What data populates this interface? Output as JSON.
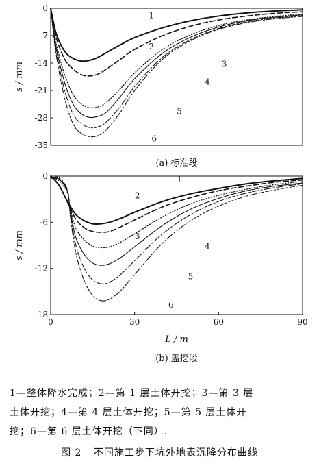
{
  "chart_data": [
    {
      "type": "line",
      "caption": "(a) 标准段",
      "ylabel": "s / mm",
      "xlim": [
        0,
        90
      ],
      "ylim": [
        -35,
        0
      ],
      "yticks": [
        0,
        -7,
        -14,
        -21,
        -28,
        -35
      ],
      "ytick_labels": [
        "0",
        "-7",
        "-14",
        "-21",
        "-28",
        "-35"
      ],
      "show_x_ticks": false,
      "grid": false,
      "series": [
        {
          "name": "1",
          "style": "solid-bold",
          "x": [
            0,
            2,
            5,
            8,
            11,
            14,
            17,
            20,
            25,
            30,
            40,
            50,
            60,
            70,
            80,
            90
          ],
          "y": [
            0,
            -6.5,
            -11,
            -12.8,
            -13.5,
            -13.3,
            -12.5,
            -11.3,
            -9.3,
            -7.5,
            -5.0,
            -3.2,
            -2.0,
            -1.2,
            -0.7,
            -0.4
          ]
        },
        {
          "name": "2",
          "style": "dashed",
          "x": [
            0,
            2,
            5,
            8,
            11,
            14,
            17,
            20,
            25,
            30,
            40,
            50,
            60,
            70,
            80,
            90
          ],
          "y": [
            0,
            -7.5,
            -13,
            -15.5,
            -17.0,
            -17.3,
            -16.8,
            -15.5,
            -13.0,
            -10.5,
            -7.0,
            -4.6,
            -3.0,
            -2.0,
            -1.3,
            -0.9
          ]
        },
        {
          "name": "3",
          "style": "dotted",
          "x": [
            0,
            2,
            5,
            8,
            11,
            14,
            17,
            20,
            25,
            30,
            40,
            50,
            60,
            70,
            80,
            90
          ],
          "y": [
            0,
            -9,
            -17,
            -22,
            -24.5,
            -25.4,
            -25.2,
            -24.0,
            -20.5,
            -16.5,
            -10.5,
            -6.8,
            -4.4,
            -3.0,
            -2.1,
            -1.5
          ]
        },
        {
          "name": "4",
          "style": "solid",
          "x": [
            0,
            2,
            5,
            8,
            11,
            14,
            17,
            20,
            25,
            30,
            40,
            50,
            60,
            70,
            80,
            90
          ],
          "y": [
            0,
            -10,
            -19,
            -24.5,
            -27.0,
            -27.9,
            -27.6,
            -26.5,
            -22.5,
            -18.0,
            -11.5,
            -7.4,
            -4.8,
            -3.2,
            -2.3,
            -1.7
          ]
        },
        {
          "name": "5",
          "style": "dash-dot",
          "x": [
            0,
            2,
            5,
            8,
            11,
            14,
            17,
            20,
            25,
            30,
            40,
            50,
            60,
            70,
            80,
            90
          ],
          "y": [
            0,
            -11,
            -21,
            -27,
            -29.5,
            -30.5,
            -30.3,
            -29.0,
            -25.0,
            -20.0,
            -12.5,
            -8.0,
            -5.2,
            -3.5,
            -2.5,
            -1.9
          ]
        },
        {
          "name": "6",
          "style": "dash-dot-dot",
          "x": [
            0,
            2,
            5,
            8,
            11,
            14,
            17,
            20,
            25,
            30,
            40,
            50,
            60,
            70,
            80,
            90
          ],
          "y": [
            0,
            -12,
            -23,
            -29.5,
            -32.0,
            -32.8,
            -32.5,
            -31.0,
            -26.5,
            -21.0,
            -13.0,
            -8.3,
            -5.4,
            -3.7,
            -2.7,
            -2.1
          ]
        }
      ],
      "labels": [
        {
          "text": "1",
          "x": 36,
          "y": -2.5
        },
        {
          "text": "2",
          "x": 36,
          "y": -10.5
        },
        {
          "text": "3",
          "x": 62,
          "y": -15
        },
        {
          "text": "4",
          "x": 56,
          "y": -19.5
        },
        {
          "text": "5",
          "x": 46,
          "y": -27
        },
        {
          "text": "6",
          "x": 37,
          "y": -34
        }
      ]
    },
    {
      "type": "line",
      "caption": "(b) 盖挖段",
      "xlabel": "L / m",
      "ylabel": "s / mm",
      "xlim": [
        0,
        90
      ],
      "ylim": [
        -18,
        0
      ],
      "xticks": [
        0,
        30,
        60,
        90
      ],
      "xtick_labels": [
        "0",
        "30",
        "60",
        "90"
      ],
      "yticks": [
        0,
        -6,
        -12,
        -18
      ],
      "ytick_labels": [
        "0",
        "-6",
        "-12",
        "-18"
      ],
      "grid": false,
      "series": [
        {
          "name": "1",
          "style": "solid-bold",
          "x": [
            0,
            3,
            6,
            9,
            12,
            15,
            18,
            21,
            25,
            30,
            40,
            50,
            60,
            70,
            80,
            90
          ],
          "y": [
            0,
            -1.2,
            -3.3,
            -5.0,
            -5.8,
            -6.2,
            -6.2,
            -6.0,
            -5.5,
            -4.7,
            -3.3,
            -2.3,
            -1.6,
            -1.0,
            -0.6,
            -0.3
          ]
        },
        {
          "name": "2",
          "style": "dashed",
          "x": [
            0,
            3,
            6,
            9,
            12,
            15,
            18,
            21,
            25,
            30,
            40,
            50,
            60,
            70,
            80,
            90
          ],
          "y": [
            0,
            -1.2,
            -3.4,
            -5.6,
            -6.7,
            -7.2,
            -7.3,
            -7.2,
            -6.6,
            -5.7,
            -4.0,
            -2.8,
            -1.9,
            -1.3,
            -0.8,
            -0.5
          ]
        },
        {
          "name": "3",
          "style": "dotted",
          "x": [
            0,
            3,
            6,
            7,
            9,
            12,
            15,
            18,
            21,
            25,
            30,
            40,
            50,
            60,
            70,
            80,
            90
          ],
          "y": [
            -0.2,
            -0.6,
            -2.2,
            -4.2,
            -6.8,
            -8.3,
            -9.1,
            -9.3,
            -9.2,
            -8.6,
            -7.5,
            -5.3,
            -3.6,
            -2.5,
            -1.7,
            -1.1,
            -0.7
          ]
        },
        {
          "name": "4",
          "style": "solid",
          "x": [
            0,
            3,
            6,
            7,
            9,
            12,
            15,
            18,
            21,
            25,
            30,
            40,
            50,
            60,
            70,
            80,
            90
          ],
          "y": [
            -0.3,
            -0.4,
            -2.0,
            -4.5,
            -8.0,
            -10.2,
            -11.3,
            -11.6,
            -11.4,
            -10.6,
            -9.2,
            -6.4,
            -4.3,
            -2.9,
            -1.9,
            -1.3,
            -0.9
          ]
        },
        {
          "name": "5",
          "style": "dash-dot",
          "x": [
            0,
            3,
            6,
            7,
            9,
            12,
            15,
            18,
            21,
            25,
            30,
            40,
            50,
            60,
            70,
            80,
            90
          ],
          "y": [
            -0.3,
            -0.3,
            -1.9,
            -4.8,
            -9.0,
            -12.0,
            -13.5,
            -14.0,
            -13.8,
            -12.8,
            -11.0,
            -7.5,
            -5.0,
            -3.3,
            -2.2,
            -1.5,
            -1.0
          ]
        },
        {
          "name": "6",
          "style": "dash-dot-dot",
          "x": [
            0,
            3,
            6,
            7,
            9,
            12,
            15,
            18,
            21,
            25,
            30,
            40,
            50,
            60,
            70,
            80,
            90
          ],
          "y": [
            -0.3,
            -0.2,
            -1.8,
            -5.1,
            -10.0,
            -13.6,
            -15.5,
            -16.2,
            -16.0,
            -14.9,
            -12.8,
            -8.7,
            -5.8,
            -3.9,
            -2.6,
            -1.8,
            -1.2
          ]
        }
      ],
      "labels": [
        {
          "text": "1",
          "x": 46,
          "y": -0.8
        },
        {
          "text": "2",
          "x": 31,
          "y": -2.9
        },
        {
          "text": "3",
          "x": 31,
          "y": -8.2
        },
        {
          "text": "4",
          "x": 56,
          "y": -9.5
        },
        {
          "text": "5",
          "x": 50,
          "y": -13.4
        },
        {
          "text": "6",
          "x": 43,
          "y": -17.1
        }
      ]
    }
  ],
  "legend_lines": [
    "1—整体降水完成；2—第 1 层土体开挖；3—第 3 层",
    "土体开挖；4—第 4 层土体开挖；5—第 5 层土体开",
    "挖；6—第 6 层土体开挖（下同）."
  ],
  "figure_title": {
    "number": "图 2",
    "text": "不同施工步下坑外地表沉降分布曲线"
  }
}
